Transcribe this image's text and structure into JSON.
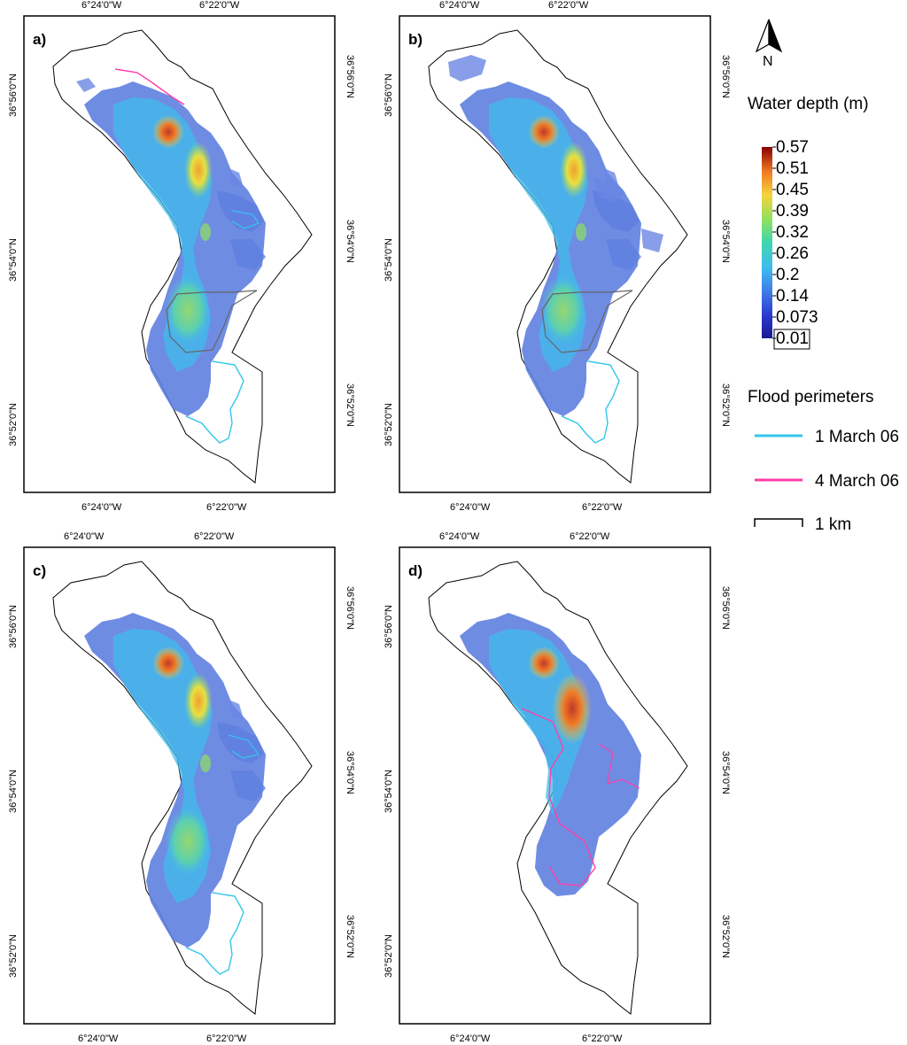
{
  "figure": {
    "panels": [
      {
        "label": "a)"
      },
      {
        "label": "b)"
      },
      {
        "label": "c)"
      },
      {
        "label": "d)"
      }
    ],
    "axis_ticks": {
      "longitude": [
        "6°24'0\"W",
        "6°22'0\"W"
      ],
      "latitude": [
        "36°56'0\"N",
        "36°54'0\"N",
        "36°52'0\"N"
      ]
    }
  },
  "legend": {
    "north_arrow": {
      "letter": "N",
      "icon": "north-arrow-icon"
    },
    "depth_title": "Water depth (m)",
    "depth_ticks": [
      "0.57",
      "0.51",
      "0.45",
      "0.39",
      "0.32",
      "0.26",
      "0.2",
      "0.14",
      "0.073",
      "0.01"
    ],
    "depth_colors": [
      "#8b0000",
      "#e03020",
      "#f07a25",
      "#f5d43a",
      "#8fe060",
      "#3fd6b0",
      "#3fbcec",
      "#3f7fe8",
      "#2a3ad0",
      "#1a1a90"
    ],
    "perimeters_title": "Flood perimeters",
    "perimeters": [
      {
        "label": "1 March 06",
        "color": "#33c6ea"
      },
      {
        "label": "4 March 06",
        "color": "#ff3fa8"
      }
    ],
    "scale_label": "1 km"
  }
}
